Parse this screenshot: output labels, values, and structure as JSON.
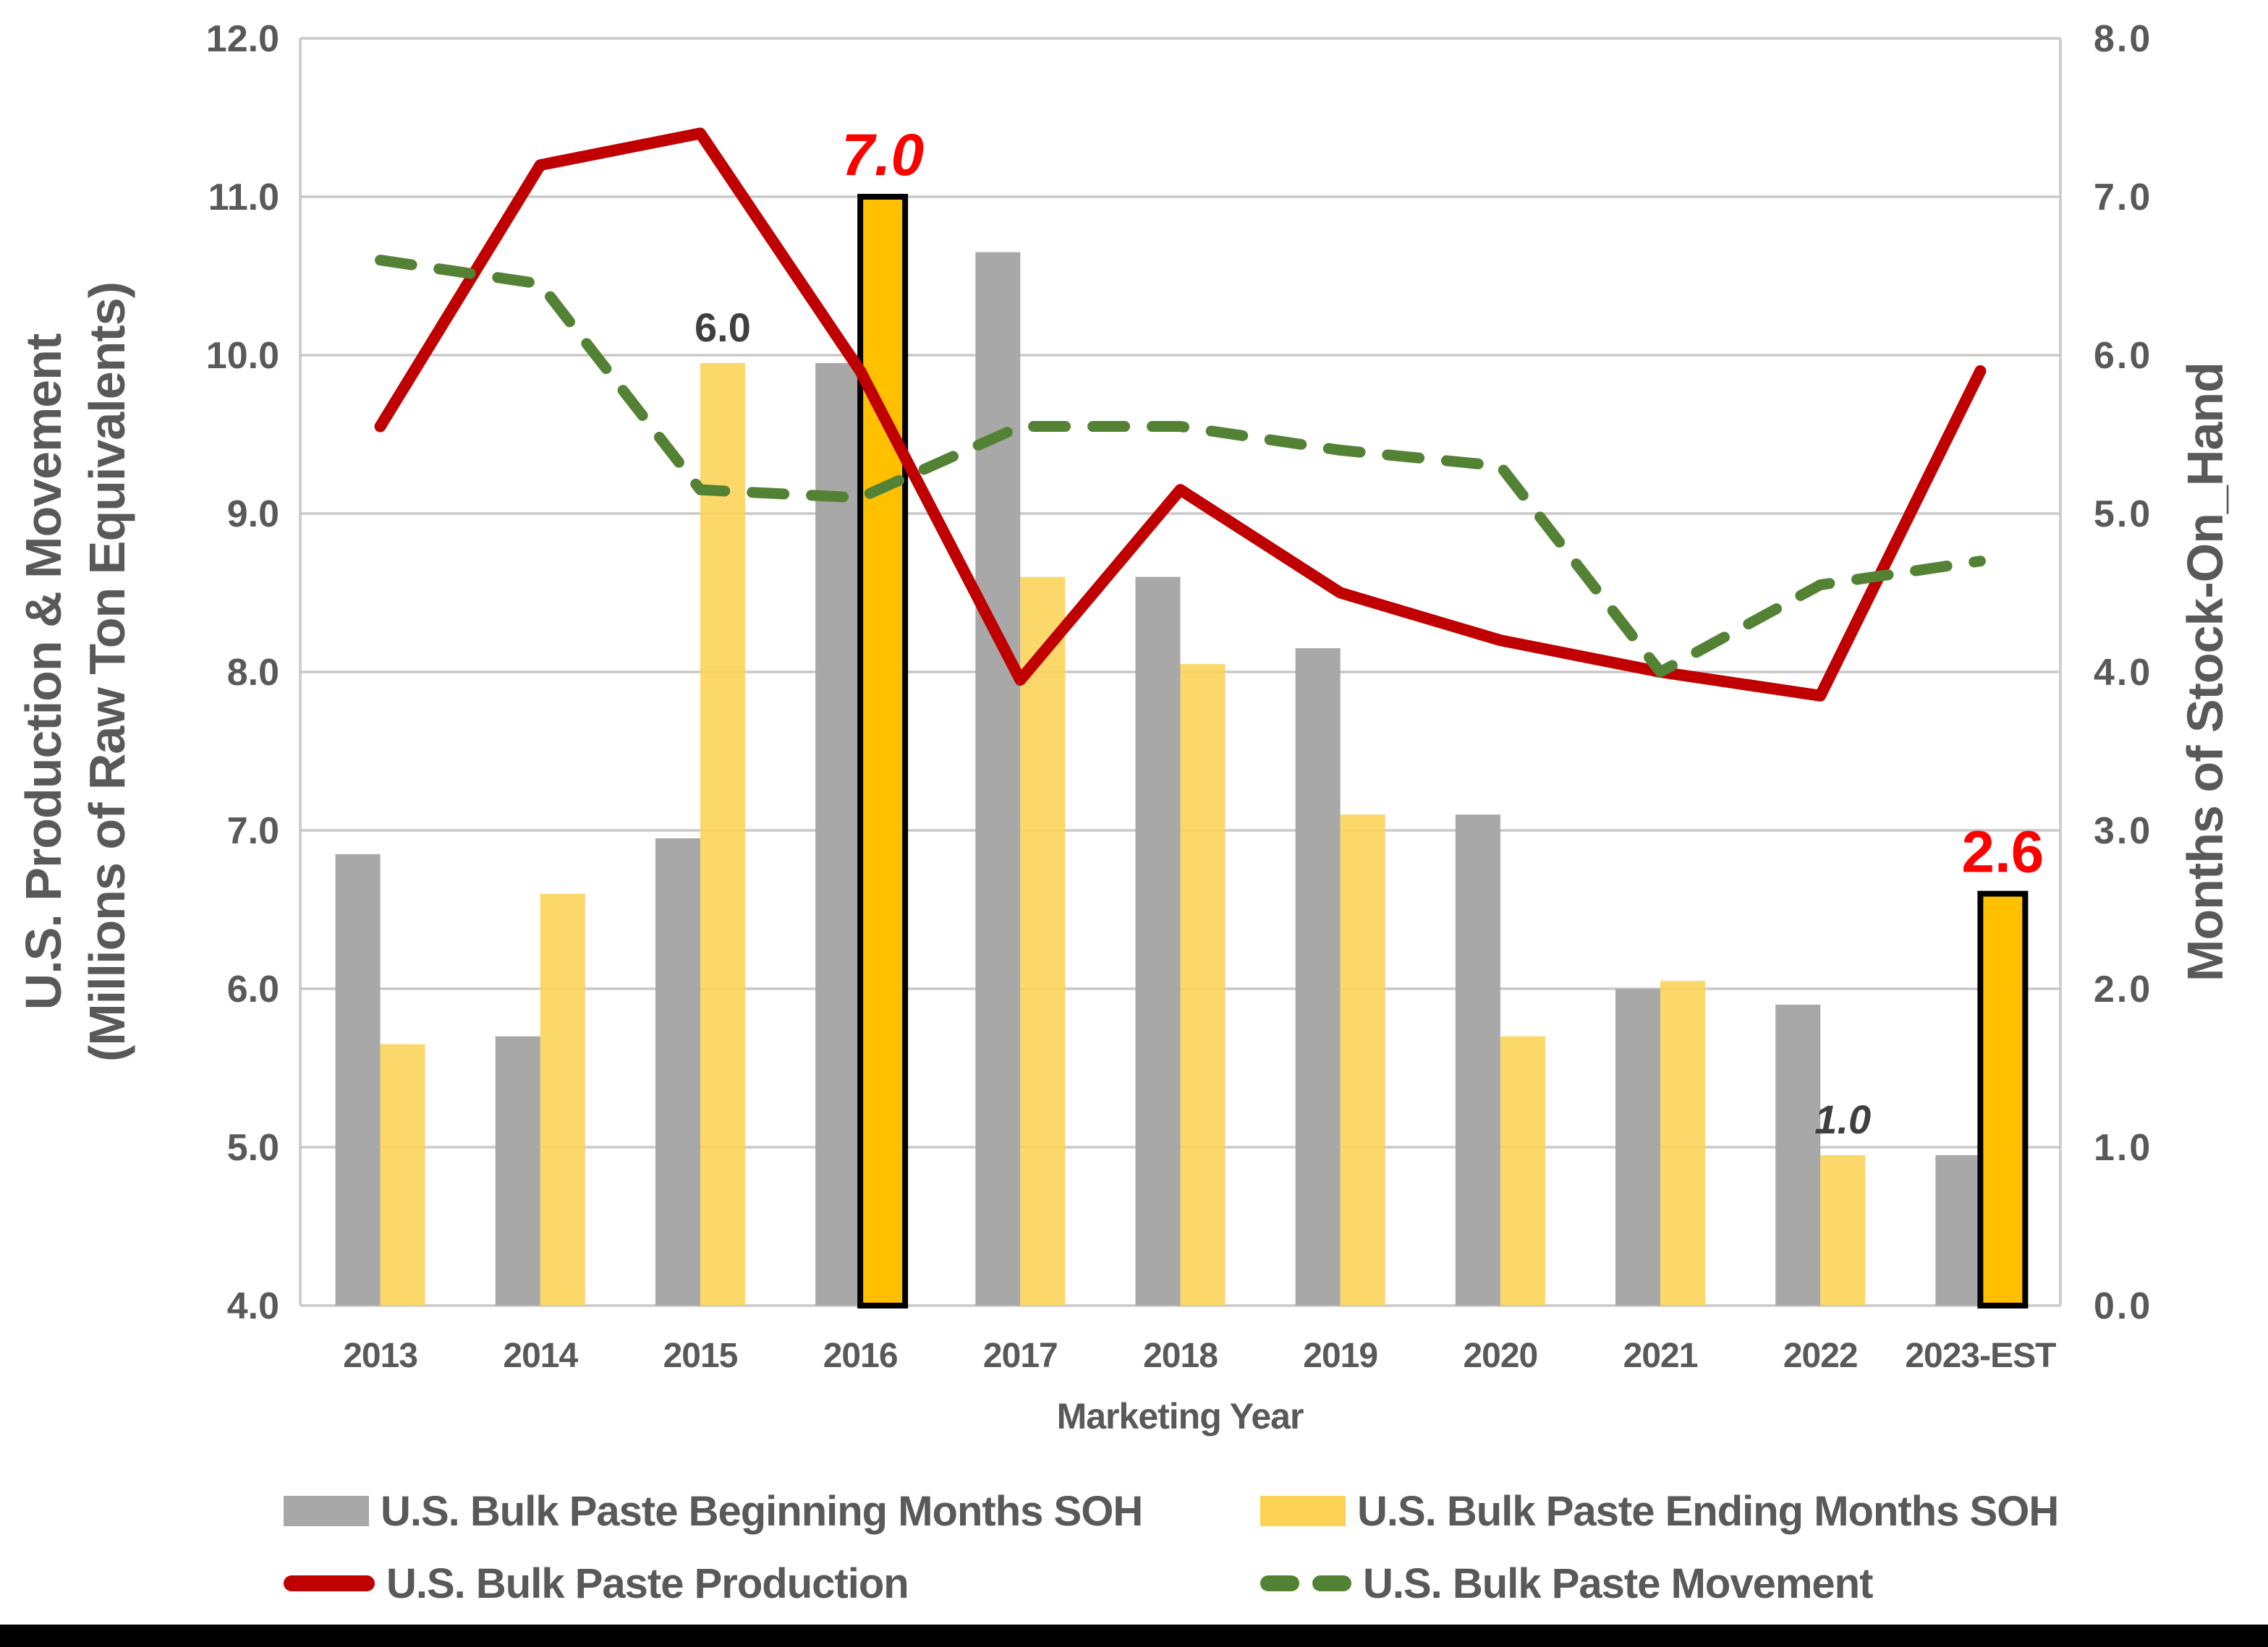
{
  "chart_data": {
    "type": "combo-bar-line",
    "categories": [
      "2013",
      "2014",
      "2015",
      "2016",
      "2017",
      "2018",
      "2019",
      "2020",
      "2021",
      "2022",
      "2023-EST"
    ],
    "x_axis": {
      "title": "Marketing Year"
    },
    "left_axis": {
      "title_line1": "U.S. Production & Movement",
      "title_line2": "(Millions of Raw Ton Equivalents)",
      "min": 4.0,
      "max": 12.0,
      "step": 1.0,
      "tick_labels": [
        "12.0",
        "11.0",
        "10.0",
        "9.0",
        "8.0",
        "7.0",
        "6.0",
        "5.0",
        "4.0"
      ]
    },
    "right_axis": {
      "title": "Months of Stock-On_Hand",
      "min": 0.0,
      "max": 8.0,
      "step": 1.0,
      "tick_labels": [
        "8.0",
        "7.0",
        "6.0",
        "5.0",
        "4.0",
        "3.0",
        "2.0",
        "1.0",
        "0.0"
      ]
    },
    "grid": true,
    "grid_color": "#C9C9C9",
    "axis_text_color": "#595959",
    "legend_position": "bottom",
    "series": [
      {
        "name": "U.S. Bulk Paste Beginning Months SOH",
        "type": "bar",
        "axis": "right",
        "color": "#A8A8A8",
        "values": [
          2.85,
          1.7,
          2.95,
          5.95,
          6.65,
          4.6,
          4.15,
          3.1,
          2.0,
          1.9,
          0.95
        ]
      },
      {
        "name": "U.S. Bulk Paste Ending Months SOH",
        "type": "bar",
        "axis": "right",
        "color": "#FCD255",
        "values": [
          1.65,
          2.6,
          5.95,
          7.0,
          4.6,
          4.05,
          3.1,
          1.7,
          2.05,
          0.95,
          2.6
        ],
        "highlights": [
          {
            "index": 3,
            "color": "#FFC000",
            "border": "#000000"
          },
          {
            "index": 10,
            "color": "#FFC000",
            "border": "#000000"
          }
        ]
      },
      {
        "name": "U.S. Bulk Paste Production",
        "type": "line",
        "axis": "left",
        "dashed": false,
        "color": "#C00000",
        "values": [
          9.55,
          11.2,
          11.4,
          9.9,
          7.95,
          9.15,
          8.5,
          8.2,
          8.0,
          7.85,
          9.9
        ]
      },
      {
        "name": "U.S. Bulk Paste Movement",
        "type": "line",
        "axis": "left",
        "dashed": true,
        "color": "#548235",
        "values": [
          10.6,
          10.45,
          9.15,
          9.1,
          9.55,
          9.55,
          9.4,
          9.3,
          8.0,
          8.55,
          8.7
        ]
      }
    ],
    "annotations": [
      {
        "text": "6.0",
        "category_index": 2,
        "color": "#3F3F3F",
        "italic": false,
        "size": "small"
      },
      {
        "text": "7.0",
        "category_index": 3,
        "color": "#FF0000",
        "italic": true,
        "size": "large"
      },
      {
        "text": "1.0",
        "category_index": 9,
        "color": "#3F3F3F",
        "italic": true,
        "size": "small"
      },
      {
        "text": "2.6",
        "category_index": 10,
        "color": "#FF0000",
        "italic": false,
        "size": "large"
      }
    ]
  },
  "legend": {
    "items": [
      {
        "label": "U.S. Bulk Paste Beginning Months SOH",
        "swatch": "bar",
        "color": "#A8A8A8"
      },
      {
        "label": "U.S. Bulk Paste Ending Months SOH",
        "swatch": "bar",
        "color": "#FCD255"
      },
      {
        "label": "U.S. Bulk Paste Production",
        "swatch": "line",
        "color": "#C00000"
      },
      {
        "label": "U.S. Bulk Paste Movement",
        "swatch": "dashed-line",
        "color": "#548235"
      }
    ]
  },
  "page": {
    "background": "#FFFFFF",
    "footer_bar_color": "#000000"
  }
}
